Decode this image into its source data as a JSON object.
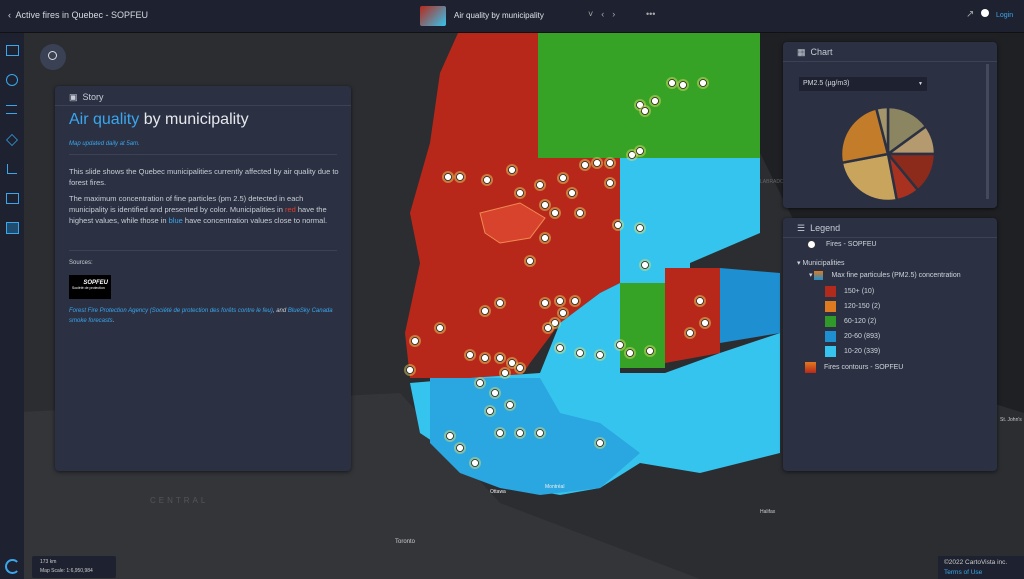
{
  "topbar": {
    "back_title": "Active fires in Quebec - SOPFEU",
    "slide_title": "Air quality by municipality",
    "login": "Login"
  },
  "story": {
    "header": "Story",
    "title_highlight": "Air quality",
    "title_rest": " by municipality",
    "subtitle": "Map updated daily at 5am.",
    "paragraph_1": "This slide shows the Quebec municipalities currently affected by air quality due to forest fires.",
    "paragraph_2": [
      "The maximum concentration of fine particles (pm 2.5) detected in each municipality is identified and presented by color. Municipalities in ",
      "red",
      " have the highest values, while those in ",
      "blue",
      " have concentration values close to normal."
    ],
    "sources_label": "Sources:",
    "logo_text": "SOPFEU",
    "logo_caption": "Société de protection",
    "sources": [
      "Forest Fire Protection Agency (Société de protection des forêts contre le feu)",
      ", and ",
      "BlueSky Canada smoke forecasts",
      "."
    ]
  },
  "chart_panel": {
    "header": "Chart",
    "dropdown": "PM2.5 (µg/m3)",
    "pie": {
      "type": "pie",
      "values": [
        15,
        10,
        14,
        8,
        25,
        24,
        4
      ],
      "colors": [
        "#8b8562",
        "#b49a6e",
        "#8c2a1c",
        "#a8321f",
        "#c9a45c",
        "#c27c2a",
        "#a4966a"
      ]
    }
  },
  "legend": {
    "header": "Legend",
    "fires": "Fires - SOPFEU",
    "group": "Municipalities",
    "layer": "Max fine particules (PM2.5) concentration",
    "items": [
      {
        "label": "150+ (10)",
        "color": "#b22a1c"
      },
      {
        "label": "120-150 (2)",
        "color": "#e07a20"
      },
      {
        "label": "60-120 (2)",
        "color": "#2f9a2a"
      },
      {
        "label": "20-60 (893)",
        "color": "#1e8fd0"
      },
      {
        "label": "10-20 (339)",
        "color": "#36c3ee"
      }
    ],
    "contours": "Fires contours - SOPFEU"
  },
  "map": {
    "labels": [
      "Toronto",
      "Ottawa",
      "Montréal",
      "Halifax",
      "St. John's",
      "CENTRAL",
      "LABRADOR"
    ],
    "scale_distance": "173 km",
    "scale_ratio": "Map Scale: 1:6,950,984"
  },
  "footer": {
    "copyright": "©2022 CartoVista inc.",
    "terms": "Terms of Use"
  }
}
